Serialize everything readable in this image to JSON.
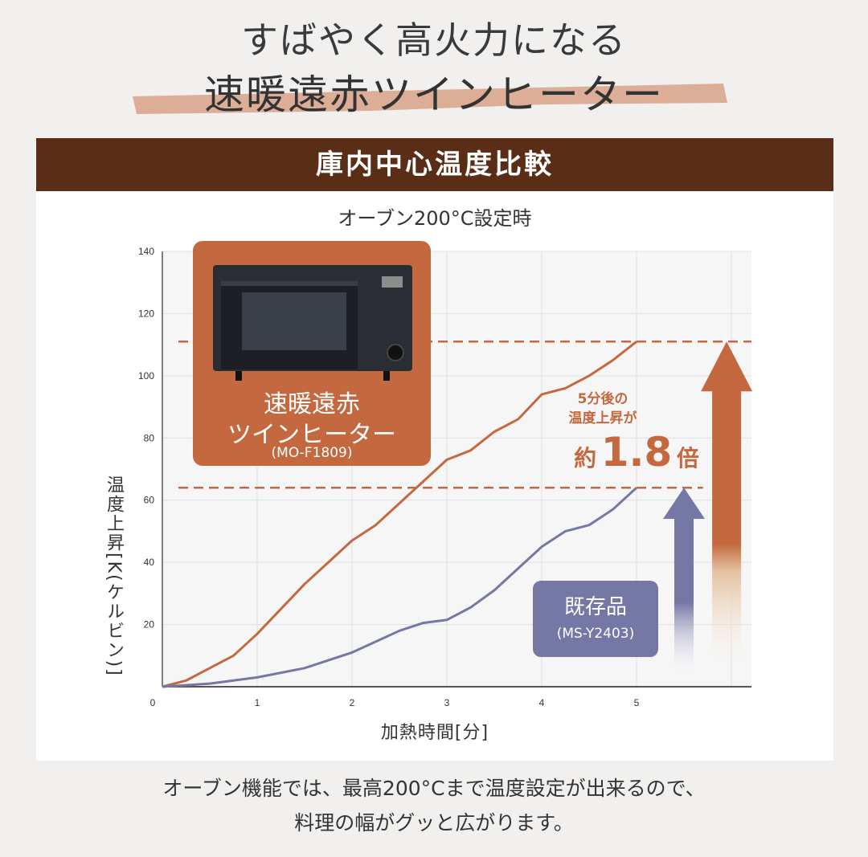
{
  "header": {
    "line1": "すばやく高火力になる",
    "line2": "速暖遠赤ツインヒーター"
  },
  "banner": "庫内中心温度比較",
  "subtitle": "オーブン200°C設定時",
  "new_product": {
    "name_line1": "速暖遠赤",
    "name_line2": "ツインヒーター",
    "model": "(MO-F1809)"
  },
  "old_product": {
    "name": "既存品",
    "model": "(MS-Y2403)"
  },
  "annotation": {
    "line1": "5分後の",
    "line2": "温度上昇が",
    "prefix": "約",
    "value": "1.8",
    "suffix": "倍"
  },
  "footer": {
    "line1": "オーブン機能では、最高200°Cまで温度設定が出来るので、",
    "line2": "料理の幅がグッと広がります。"
  },
  "colors": {
    "new": "#c4693f",
    "old": "#7577a5",
    "banner": "#5a2d17"
  },
  "chart_data": {
    "type": "line",
    "title": "庫内中心温度比較",
    "subtitle": "オーブン200°C設定時",
    "xlabel": "加熱時間[分]",
    "ylabel": "温度上昇[K(ケルビン)]",
    "xlim": [
      0,
      6
    ],
    "ylim": [
      0,
      140
    ],
    "xticks": [
      "0",
      "1",
      "2",
      "3",
      "4",
      "5"
    ],
    "yticks": [
      "20",
      "40",
      "60",
      "80",
      "100",
      "120",
      "140"
    ],
    "grid": true,
    "x": [
      0,
      0.25,
      0.5,
      0.75,
      1,
      1.25,
      1.5,
      1.75,
      2,
      2.25,
      2.5,
      2.75,
      3,
      3.25,
      3.5,
      3.75,
      4,
      4.25,
      4.5,
      4.75,
      5
    ],
    "series": [
      {
        "name": "速暖遠赤ツインヒーター(MO-F1809)",
        "color": "#c4693f",
        "values": [
          0,
          2,
          6,
          10,
          17,
          25,
          33,
          40,
          47,
          52,
          59,
          66,
          73,
          76,
          82,
          86,
          94,
          96,
          100,
          105,
          111
        ]
      },
      {
        "name": "既存品(MS-Y2403)",
        "color": "#7577a5",
        "values": [
          0,
          0.5,
          1,
          2,
          3,
          4.5,
          6,
          8.5,
          11,
          14.5,
          18,
          20.5,
          21.5,
          25.5,
          31,
          38,
          45,
          50,
          52,
          57,
          64
        ]
      }
    ],
    "reference_lines": [
      111,
      64
    ],
    "ratio": "約1.8倍"
  }
}
